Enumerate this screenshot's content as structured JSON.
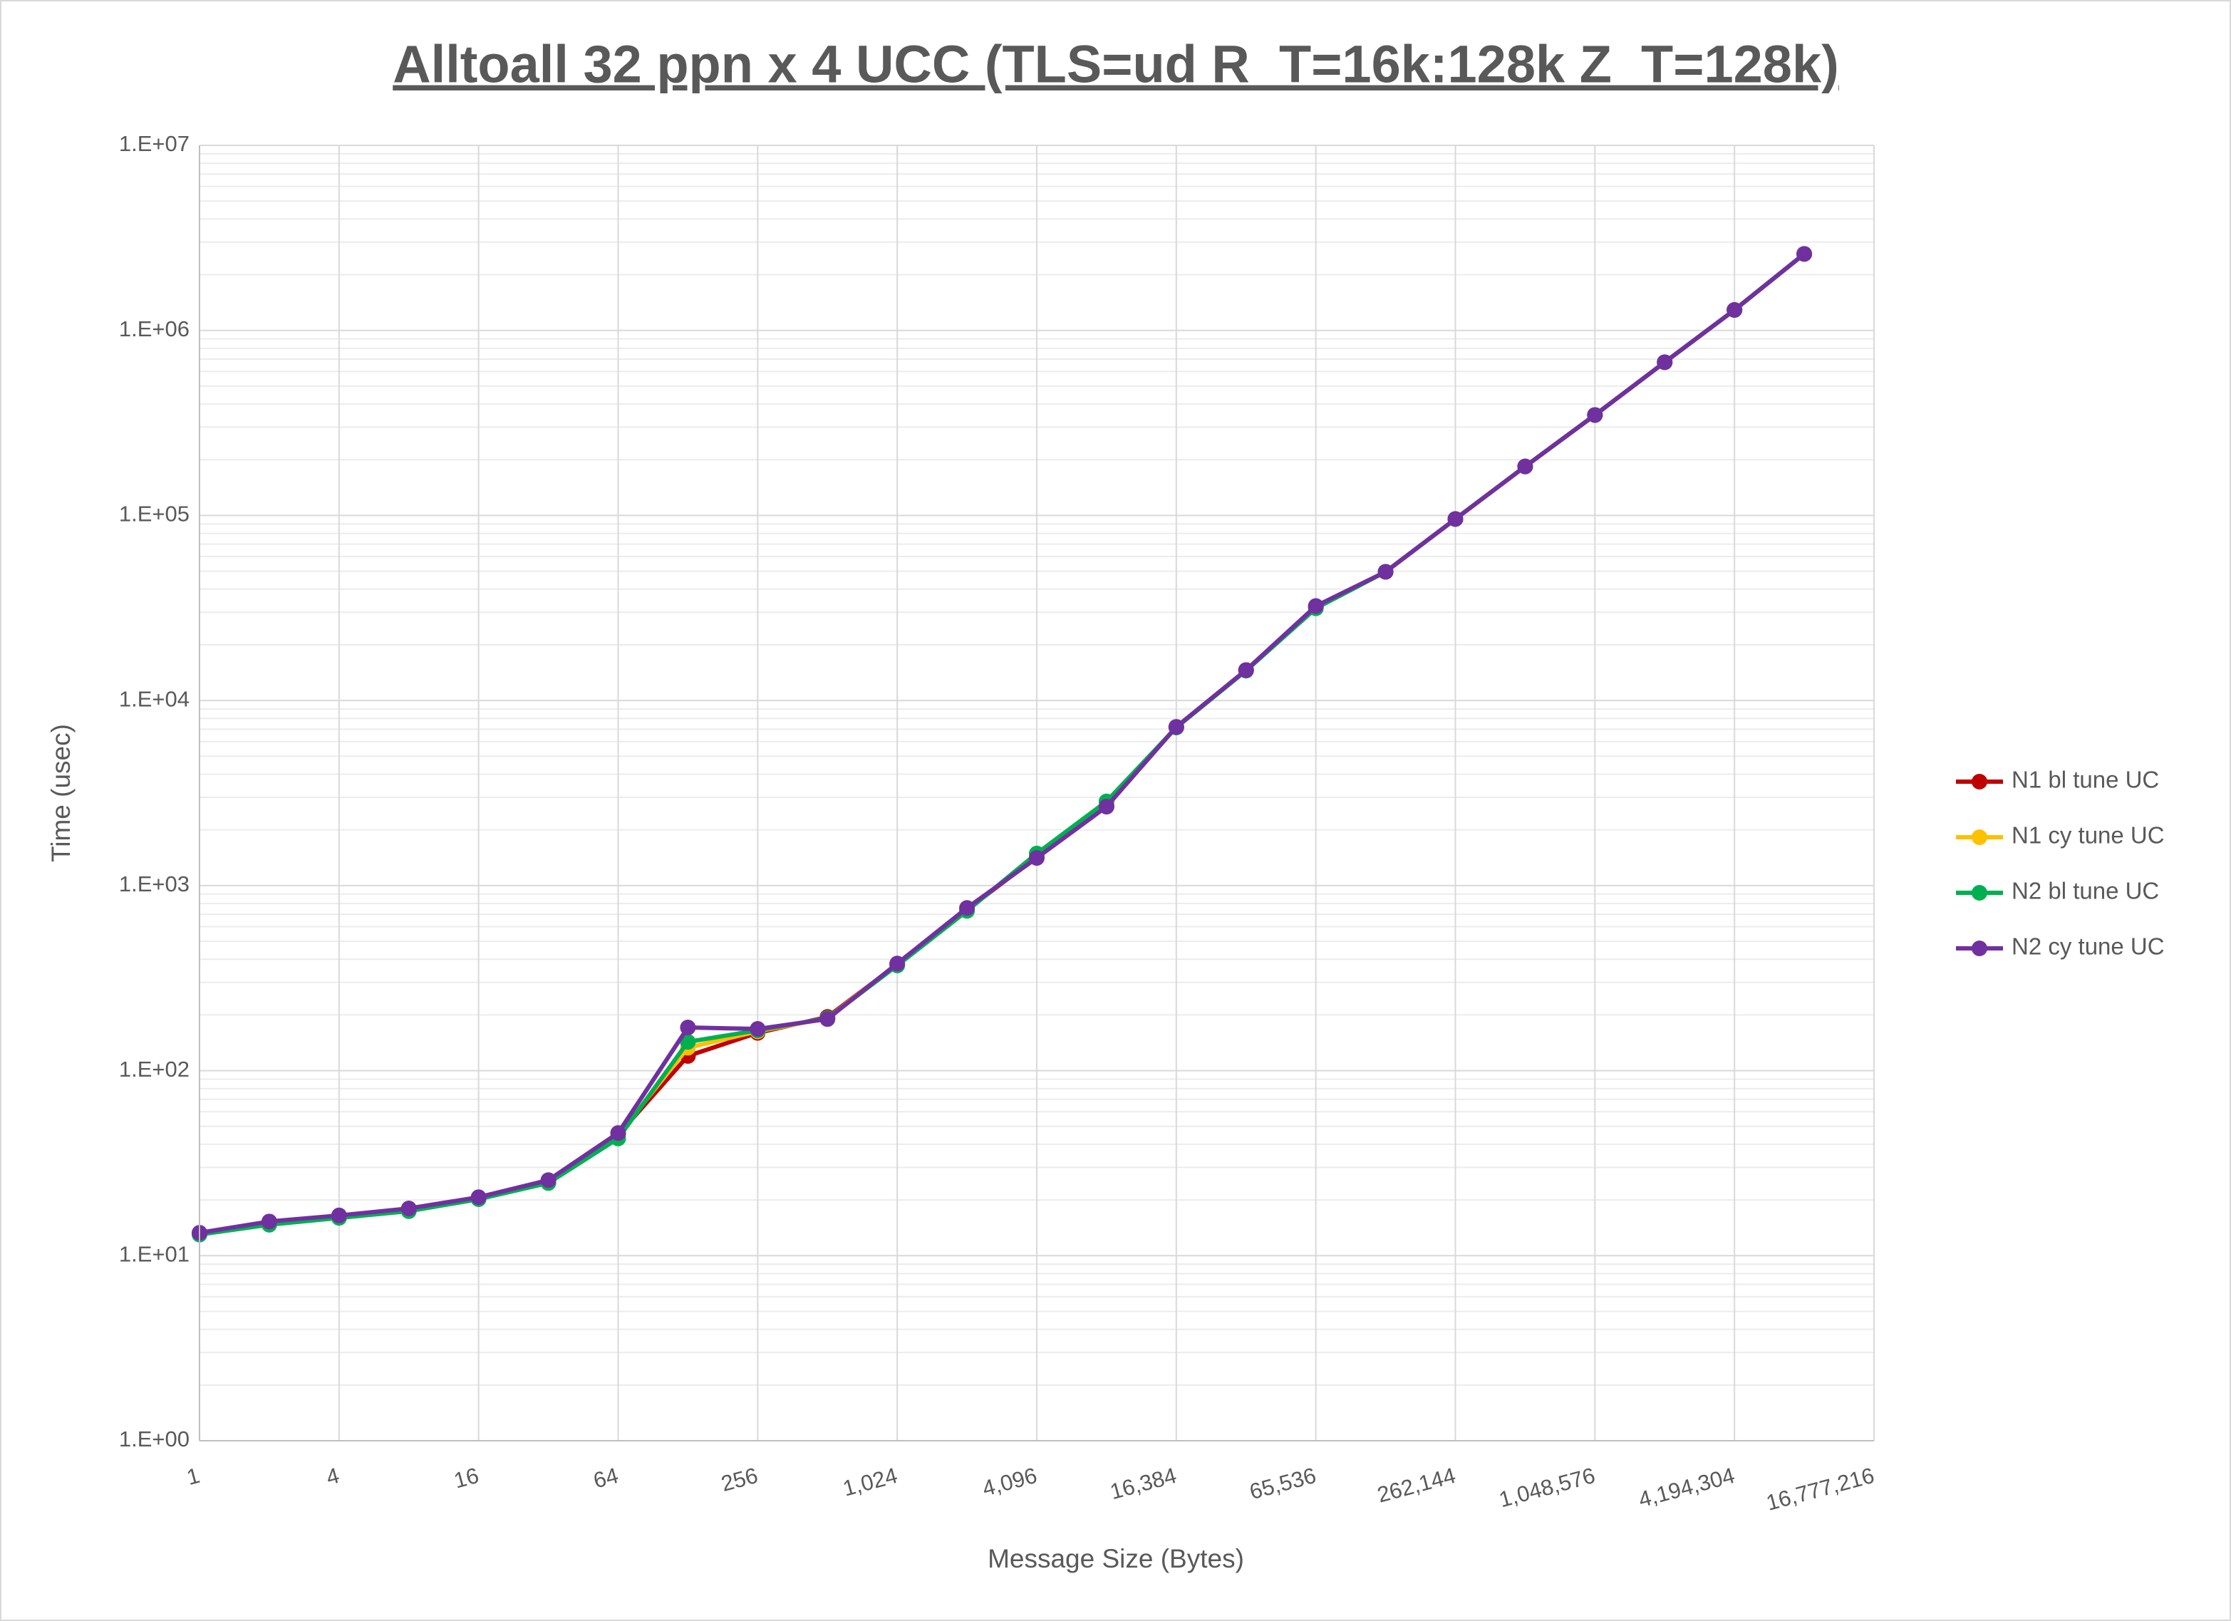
{
  "chart_data": {
    "type": "line",
    "title": "Alltoall 32 ppn x 4 UCC (TLS=ud R_T=16k:128k Z_T=128k)",
    "x_label": "Message Size (Bytes)",
    "y_label": "Time (usec)",
    "x": [
      1,
      2,
      4,
      8,
      16,
      32,
      64,
      128,
      256,
      512,
      1024,
      2048,
      4096,
      8192,
      16384,
      32768,
      65536,
      131072,
      262144,
      524288,
      1048576,
      2097152,
      4194304,
      8388608
    ],
    "series": [
      {
        "name": "N1 bl tune UC",
        "color": "#c00000",
        "values": [
          13.2,
          15,
          16.2,
          17.7,
          20.5,
          25.3,
          45,
          120,
          160,
          195,
          375,
          740,
          1430,
          2700,
          7200,
          14600,
          32000,
          49600,
          95700,
          184000,
          349000,
          673000,
          1290000,
          2590000
        ]
      },
      {
        "name": "N1 cy tune UC",
        "color": "#ffc000",
        "values": [
          13.2,
          15,
          16.2,
          17.7,
          20.5,
          25.3,
          45,
          133,
          163,
          192,
          377,
          745,
          1440,
          2750,
          7200,
          14600,
          32000,
          49600,
          95700,
          184000,
          349000,
          673000,
          1290000,
          2590000
        ]
      },
      {
        "name": "N2 bl tune UC",
        "color": "#00b050",
        "values": [
          13,
          14.7,
          16,
          17.4,
          20.2,
          24.7,
          43,
          143,
          165,
          192,
          370,
          730,
          1490,
          2850,
          7150,
          14500,
          31500,
          49600,
          95700,
          184000,
          349000,
          673000,
          1290000,
          2590000
        ]
      },
      {
        "name": "N2 cy tune UC",
        "color": "#7030a0",
        "values": [
          13.3,
          15.3,
          16.5,
          18,
          20.7,
          25.6,
          46,
          171,
          168,
          190,
          379,
          757,
          1410,
          2670,
          7200,
          14600,
          32400,
          49600,
          95700,
          184000,
          349000,
          673000,
          1290000,
          2590000
        ]
      }
    ],
    "x_log_base": 2,
    "y_log_base": 10,
    "xlim": [
      1,
      16777216
    ],
    "ylim": [
      1,
      10000000
    ],
    "xticks": [
      1,
      4,
      16,
      64,
      256,
      {
        "value": 1024,
        "label": "1,024"
      },
      {
        "value": 4096,
        "label": "4,096"
      },
      {
        "value": 16384,
        "label": "16,384"
      },
      {
        "value": 65536,
        "label": "65,536"
      },
      {
        "value": 262144,
        "label": "262,144"
      },
      {
        "value": 1048576,
        "label": "1,048,576"
      },
      {
        "value": 4194304,
        "label": "4,194,304"
      },
      {
        "value": 16777216,
        "label": "16,777,216"
      }
    ],
    "yticks": [
      {
        "value": 1,
        "label": "1.E+00"
      },
      {
        "value": 10,
        "label": "1.E+01"
      },
      {
        "value": 100,
        "label": "1.E+02"
      },
      {
        "value": 1000,
        "label": "1.E+03"
      },
      {
        "value": 10000,
        "label": "1.E+04"
      },
      {
        "value": 100000,
        "label": "1.E+05"
      },
      {
        "value": 1000000,
        "label": "1.E+06"
      },
      {
        "value": 10000000,
        "label": "1.E+07"
      }
    ],
    "grid": true,
    "minor_grid": true,
    "legend": "right"
  }
}
